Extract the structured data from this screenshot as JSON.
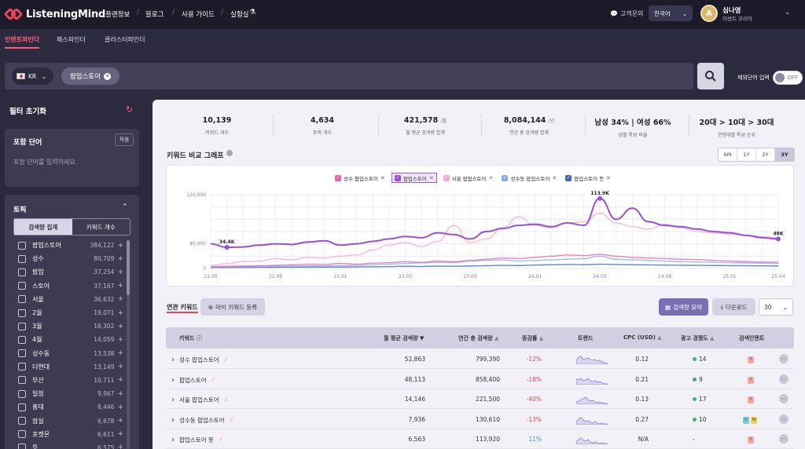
{
  "nav": {
    "brand": "ListeningMind",
    "items": [
      "플랜정보",
      "블로그",
      "사용 가이드",
      "실험실"
    ],
    "support": "고객문의",
    "language": "한국어",
    "user": {
      "initial": "A",
      "name": "심나영",
      "company": "어센트 코리아"
    }
  },
  "tabs": [
    "인텐트파인더",
    "패스파인더",
    "클러스터파인더"
  ],
  "search": {
    "country": "KR",
    "keyword": "팝업스토어",
    "exclude_label": "제외단어 입력",
    "toggle": "OFF"
  },
  "sidebar": {
    "reset_label": "필터 초기화",
    "include": {
      "title": "포함 단어",
      "apply": "적용",
      "placeholder": "포함 단어를 입력하세요."
    },
    "topic": {
      "title": "토픽",
      "seg": [
        "검색량 집계",
        "키워드 개수"
      ],
      "items": [
        {
          "name": "팝업스토어",
          "count": "384,122"
        },
        {
          "name": "성수",
          "count": "80,709"
        },
        {
          "name": "팝업",
          "count": "37,254"
        },
        {
          "name": "스토어",
          "count": "37,167"
        },
        {
          "name": "서울",
          "count": "36,632"
        },
        {
          "name": "2월",
          "count": "19,071"
        },
        {
          "name": "3월",
          "count": "16,302"
        },
        {
          "name": "4월",
          "count": "14,059"
        },
        {
          "name": "성수동",
          "count": "13,538"
        },
        {
          "name": "더현대",
          "count": "13,149"
        },
        {
          "name": "부산",
          "count": "10,711"
        },
        {
          "name": "일정",
          "count": "9,967"
        },
        {
          "name": "홍대",
          "count": "8,446"
        },
        {
          "name": "잠실",
          "count": "6,678"
        },
        {
          "name": "포켓몬",
          "count": "6,611"
        },
        {
          "name": "뜻",
          "count": "6,575"
        }
      ]
    }
  },
  "stats": [
    {
      "value": "10,139",
      "unit": "",
      "label": "키워드 개수"
    },
    {
      "value": "4,634",
      "unit": "",
      "label": "토픽 개수"
    },
    {
      "value": "421,578",
      "unit": "/월",
      "label": "월 평균 검색량 합계"
    },
    {
      "value": "8,084,144",
      "unit": "/년",
      "label": "연간 총 검색량 합계"
    },
    {
      "value": "남성 34% | 여성 66%",
      "unit": "",
      "label": "성별 특성 비율"
    },
    {
      "value": "20대 > 10대 > 30대",
      "unit": "",
      "label": "연령대별 특성 순위"
    }
  ],
  "chart_section": {
    "title": "키워드 비교 그래프",
    "ranges": [
      "6M",
      "1Y",
      "2Y",
      "3Y"
    ],
    "active_range": "3Y"
  },
  "chart_data": {
    "type": "line",
    "x": [
      "22.05",
      "22.06",
      "22.07",
      "22.08",
      "22.09",
      "22.10",
      "22.11",
      "22.12",
      "23.01",
      "23.02",
      "23.03",
      "23.04",
      "23.05",
      "23.06",
      "23.07",
      "23.08",
      "23.09",
      "23.10",
      "23.11",
      "23.12",
      "24.01",
      "24.02",
      "24.03",
      "24.04",
      "24.05",
      "24.06",
      "24.07",
      "24.08",
      "24.09",
      "24.10",
      "24.11",
      "24.12",
      "25.01",
      "25.02",
      "25.03",
      "25.04"
    ],
    "tick_labels": [
      "22.05",
      "22.09",
      "23.01",
      "23.05",
      "23.09",
      "24.01",
      "24.05",
      "24.09",
      "25.01",
      "25.04"
    ],
    "yticks": [
      "120,000",
      "40,000",
      "0"
    ],
    "ylim": [
      0,
      120000
    ],
    "series": [
      {
        "name": "성수 팝업스토어",
        "color": "#ef5fa7",
        "values": [
          3000,
          3500,
          4000,
          4500,
          5000,
          6000,
          7000,
          6500,
          8000,
          7000,
          8500,
          9500,
          11000,
          10000,
          12000,
          11000,
          13000,
          15000,
          17000,
          16000,
          18000,
          20000,
          22000,
          21000,
          23000,
          20000,
          18000,
          17000,
          16000,
          15000,
          14500,
          13000,
          12000,
          11000,
          10500,
          10000
        ]
      },
      {
        "name": "팝업스토어",
        "color": "#9b4fd6",
        "values": [
          40000,
          34400,
          35000,
          38000,
          40000,
          39000,
          43000,
          45000,
          38000,
          40000,
          44000,
          48000,
          52000,
          50000,
          58000,
          55000,
          48000,
          60000,
          65000,
          70000,
          72000,
          68000,
          74000,
          70000,
          113900,
          80000,
          98000,
          76000,
          70000,
          68000,
          64000,
          60000,
          58000,
          54000,
          50000,
          48000
        ]
      },
      {
        "name": "서울 팝업스토어",
        "color": "#f7a6d4",
        "values": [
          5000,
          8000,
          11000,
          12000,
          16000,
          14000,
          18000,
          17000,
          20000,
          22000,
          30000,
          38000,
          42000,
          36000,
          44000,
          70000,
          42000,
          48000,
          66000,
          84000,
          70000,
          66000,
          74000,
          76000,
          90000,
          74000,
          68000,
          64000,
          72000,
          66000,
          60000,
          58000,
          56000,
          54000,
          52000,
          50000
        ]
      },
      {
        "name": "성수동 팝업스토어",
        "color": "#7fb0e8",
        "values": [
          2000,
          2500,
          3000,
          3200,
          3500,
          4000,
          4200,
          4100,
          4500,
          5000,
          6000,
          7000,
          8000,
          9000,
          10000,
          9500,
          12000,
          13000,
          14000,
          12000,
          13000,
          14000,
          15000,
          16000,
          20000,
          15000,
          14000,
          13000,
          12000,
          11000,
          10500,
          10000,
          9500,
          9000,
          8500,
          8000
        ]
      },
      {
        "name": "팝업스토어 뜻",
        "color": "#3a68c8",
        "values": [
          1500,
          1600,
          1700,
          1800,
          1900,
          2000,
          2200,
          2100,
          2300,
          2500,
          2700,
          3000,
          3500,
          3200,
          3800,
          3600,
          4000,
          4500,
          5000,
          4800,
          5500,
          6000,
          6500,
          6000,
          7000,
          6500,
          6000,
          5800,
          5500,
          5200,
          5000,
          4800,
          4600,
          4400,
          4200,
          4000
        ]
      }
    ],
    "annotations": [
      {
        "series": 1,
        "index": 1,
        "text": "34.4K"
      },
      {
        "series": 1,
        "index": 24,
        "text": "113.9K"
      },
      {
        "series": 1,
        "index": 35,
        "text": "48K"
      }
    ]
  },
  "bottom": {
    "related_tab": "연관 키워드",
    "mykw_btn": "마이 키워드 등록",
    "summary_btn": "검색량 요약",
    "download_btn": "다운로드",
    "page_size": "30"
  },
  "table": {
    "headers": [
      "키워드",
      "월 평균 검색량",
      "연간 총 검색량",
      "증감률",
      "트렌드",
      "CPC (USD)",
      "광고 경쟁도",
      "검색인텐트"
    ],
    "rows": [
      {
        "kw": "성수 팝업스토어",
        "monthly": "52,863",
        "annual": "799,390",
        "change": "-12%",
        "cpc": "0.12",
        "comp": "14",
        "intent": [
          "I"
        ]
      },
      {
        "kw": "팝업스토어",
        "monthly": "48,113",
        "annual": "858,400",
        "change": "-18%",
        "cpc": "0.21",
        "comp": "9",
        "intent": [
          "I"
        ]
      },
      {
        "kw": "서울 팝업스토어",
        "monthly": "14,146",
        "annual": "221,500",
        "change": "-40%",
        "cpc": "0.13",
        "comp": "17",
        "intent": [
          "I"
        ]
      },
      {
        "kw": "성수동 팝업스토어",
        "monthly": "7,936",
        "annual": "130,610",
        "change": "-13%",
        "cpc": "0.27",
        "comp": "10",
        "intent": [
          "C",
          "N"
        ]
      },
      {
        "kw": "팝업스토어 뜻",
        "monthly": "6,563",
        "annual": "113,920",
        "change": "11%",
        "cpc": "N/A",
        "comp": "-",
        "intent": [
          "I"
        ]
      }
    ]
  }
}
